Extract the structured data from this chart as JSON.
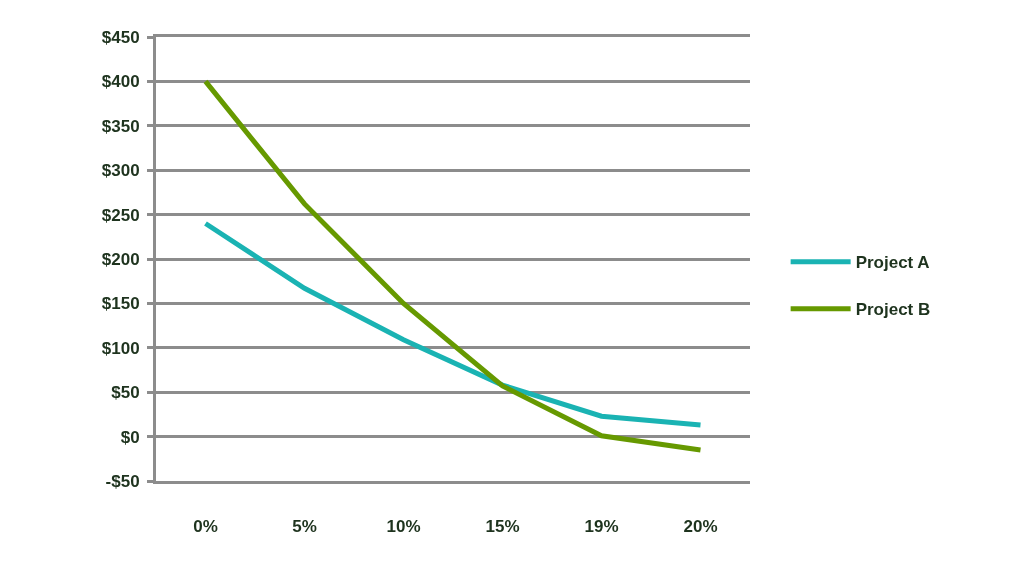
{
  "chart_data": {
    "type": "line",
    "categories": [
      "0%",
      "5%",
      "10%",
      "15%",
      "19%",
      "20%"
    ],
    "series": [
      {
        "name": "Project A",
        "color": "#1ab3b3",
        "values": [
          240,
          167,
          109,
          58,
          23,
          13
        ]
      },
      {
        "name": "Project B",
        "color": "#669900",
        "values": [
          400,
          262,
          150,
          57,
          1,
          -15
        ]
      }
    ],
    "ylim": [
      -50,
      450
    ],
    "yticks": [
      {
        "value": -50,
        "label": "-$50"
      },
      {
        "value": 0,
        "label": "$0"
      },
      {
        "value": 50,
        "label": "$50"
      },
      {
        "value": 100,
        "label": "$100"
      },
      {
        "value": 150,
        "label": "$150"
      },
      {
        "value": 200,
        "label": "$200"
      },
      {
        "value": 250,
        "label": "$250"
      },
      {
        "value": 300,
        "label": "$300"
      },
      {
        "value": 350,
        "label": "$350"
      },
      {
        "value": 400,
        "label": "$400"
      },
      {
        "value": 450,
        "label": "$450"
      }
    ],
    "grid": "y",
    "legend": "right",
    "line_style": "solid"
  }
}
